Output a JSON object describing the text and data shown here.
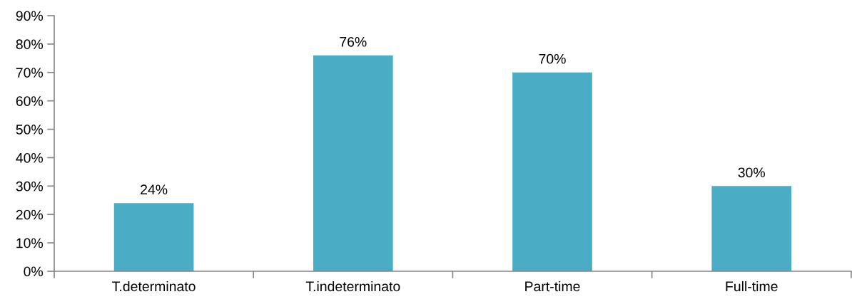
{
  "chart_data": {
    "type": "bar",
    "categories": [
      "T.determinato",
      "T.indeterminato",
      "Part-time",
      "Full-time"
    ],
    "values": [
      24,
      76,
      70,
      30
    ],
    "value_labels": [
      "24%",
      "76%",
      "70%",
      "30%"
    ],
    "color": "#4bacc6",
    "ylim": [
      0,
      90
    ],
    "yticks": [
      {
        "value": 0,
        "label": "0%"
      },
      {
        "value": 10,
        "label": "10%"
      },
      {
        "value": 20,
        "label": "20%"
      },
      {
        "value": 30,
        "label": "30%"
      },
      {
        "value": 40,
        "label": "40%"
      },
      {
        "value": 50,
        "label": "50%"
      },
      {
        "value": 60,
        "label": "60%"
      },
      {
        "value": 70,
        "label": "70%"
      },
      {
        "value": 80,
        "label": "80%"
      },
      {
        "value": 90,
        "label": "90%"
      }
    ],
    "grid": false,
    "legend": false
  }
}
